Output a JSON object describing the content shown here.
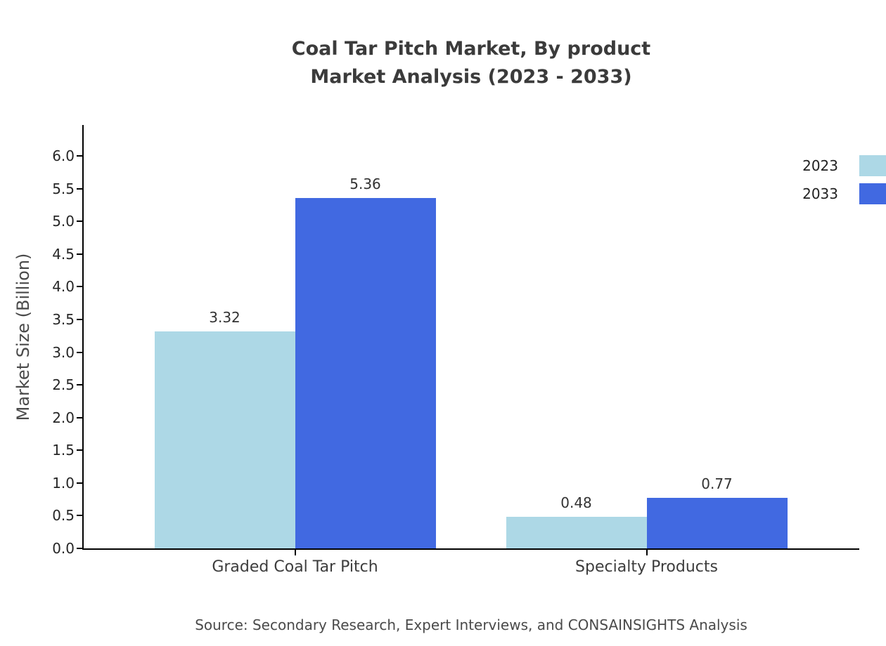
{
  "chart_data": {
    "type": "bar",
    "title_line1": "Coal Tar Pitch Market, By product",
    "title_line2": "Market Analysis (2023 - 2033)",
    "categories": [
      "Graded Coal Tar Pitch",
      "Specialty Products"
    ],
    "series": [
      {
        "name": "2023",
        "color": "#ADD8E6",
        "values": [
          3.32,
          0.48
        ],
        "labels": [
          "3.32",
          "0.48"
        ]
      },
      {
        "name": "2033",
        "color": "#4169E1",
        "values": [
          5.36,
          0.77
        ],
        "labels": [
          "5.36",
          "0.77"
        ]
      }
    ],
    "ylabel": "Market Size (Billion)",
    "xlabel": "",
    "ylim": [
      0,
      6.0
    ],
    "ytick_step": 0.5,
    "ytick_labels": [
      "0.0",
      "0.5",
      "1.0",
      "1.5",
      "2.0",
      "2.5",
      "3.0",
      "3.5",
      "4.0",
      "4.5",
      "5.0",
      "5.5",
      "6.0"
    ],
    "grid": false,
    "legend_position": "top-right"
  },
  "footer": {
    "source": "Source: Secondary Research, Expert Interviews, and CONSAINSIGHTS Analysis"
  }
}
